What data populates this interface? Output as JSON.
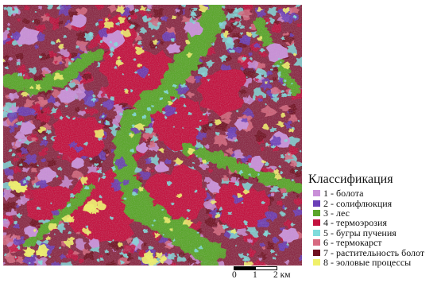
{
  "legend": {
    "title": "Классификация",
    "items": [
      {
        "label": "1 - болота",
        "color": "#c98fd8"
      },
      {
        "label": "2 - солифлюкция",
        "color": "#6a3eb8"
      },
      {
        "label": "3 - лес",
        "color": "#5aa52a"
      },
      {
        "label": "4 - термоэрозия",
        "color": "#c3123f"
      },
      {
        "label": "5 - бугры пучения",
        "color": "#7fdcdc"
      },
      {
        "label": "6 - термокарст",
        "color": "#d76a80"
      },
      {
        "label": "7 - растительность болот",
        "color": "#6e1020"
      },
      {
        "label": "8 - эоловые процессы",
        "color": "#f0f06a"
      }
    ]
  },
  "scale": {
    "labels": [
      "0",
      "1",
      "2 км"
    ]
  }
}
